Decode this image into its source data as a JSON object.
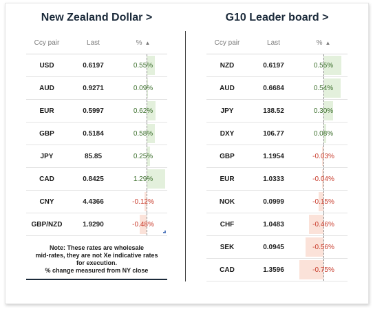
{
  "left_panel": {
    "title": "New Zealand Dollar >",
    "headers": {
      "pair": "Ccy pair",
      "last": "Last",
      "pct": "%",
      "sort_icon": "▲"
    },
    "rows": [
      {
        "pair": "USD",
        "last": "0.6197",
        "pct": "0.55%",
        "change": 0.55
      },
      {
        "pair": "AUD",
        "last": "0.9271",
        "pct": "0.09%",
        "change": 0.09
      },
      {
        "pair": "EUR",
        "last": "0.5997",
        "pct": "0.62%",
        "change": 0.62
      },
      {
        "pair": "GBP",
        "last": "0.5184",
        "pct": "0.58%",
        "change": 0.58
      },
      {
        "pair": "JPY",
        "last": "85.85",
        "pct": "0.25%",
        "change": 0.25
      },
      {
        "pair": "CAD",
        "last": "0.8425",
        "pct": "1.29%",
        "change": 1.29
      },
      {
        "pair": "CNY",
        "last": "4.4366",
        "pct": "-0.12%",
        "change": -0.12
      },
      {
        "pair": "GBP/NZD",
        "last": "1.9290",
        "pct": "-0.48%",
        "change": -0.48
      }
    ],
    "note": {
      "line1": "Note: These rates are wholesale",
      "line2": "mid-rates, they are not Xe indicative rates",
      "line3": "for execution.",
      "line4": "% change measured from NY close"
    }
  },
  "right_panel": {
    "title": "G10 Leader board >",
    "headers": {
      "pair": "Ccy pair",
      "last": "Last",
      "pct": "%",
      "sort_icon": "▲"
    },
    "rows": [
      {
        "pair": "NZD",
        "last": "0.6197",
        "pct": "0.55%",
        "change": 0.55
      },
      {
        "pair": "AUD",
        "last": "0.6684",
        "pct": "0.54%",
        "change": 0.54
      },
      {
        "pair": "JPY",
        "last": "138.52",
        "pct": "0.30%",
        "change": 0.3
      },
      {
        "pair": "DXY",
        "last": "106.77",
        "pct": "0.08%",
        "change": 0.08
      },
      {
        "pair": "GBP",
        "last": "1.1954",
        "pct": "-0.03%",
        "change": -0.03
      },
      {
        "pair": "EUR",
        "last": "1.0333",
        "pct": "-0.04%",
        "change": -0.04
      },
      {
        "pair": "NOK",
        "last": "0.0999",
        "pct": "-0.15%",
        "change": -0.15
      },
      {
        "pair": "CHF",
        "last": "1.0483",
        "pct": "-0.46%",
        "change": -0.46
      },
      {
        "pair": "SEK",
        "last": "0.0945",
        "pct": "-0.56%",
        "change": -0.56
      },
      {
        "pair": "CAD",
        "last": "1.3596",
        "pct": "-0.75%",
        "change": -0.75
      }
    ]
  },
  "colors": {
    "positive_text": "#3b6e2b",
    "negative_text": "#c83a2a",
    "positive_bar": "#e3f0dc",
    "negative_bar": "#fbe2d9",
    "title": "#1b2a3a"
  }
}
